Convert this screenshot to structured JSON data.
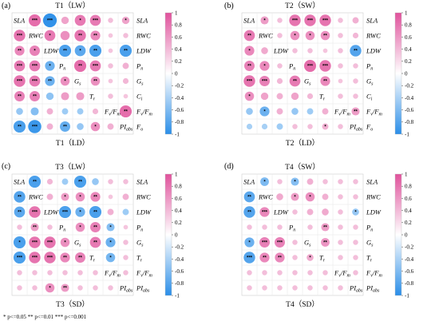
{
  "chart_data": [
    {
      "type": "heatmap",
      "panel_label": "(a)",
      "title": "T1（LW）",
      "xlabel": "T1（LD）",
      "row_labels": [
        "SLA",
        "RWC",
        "LDW",
        "Pn",
        "Gs",
        "Tr",
        "Fv/Fm",
        "PIabs"
      ],
      "col_labels": [
        "SLA",
        "RWC",
        "LDW",
        "Pn",
        "Gs",
        "Tr",
        "Fv/Fm",
        "PIabs"
      ],
      "right_labels": [
        "SLA",
        "RWC",
        "LDW",
        "Pn",
        "Gs",
        "Ci",
        "Fv/Fm",
        "Fo"
      ],
      "color_scale": {
        "min": -1,
        "max": 1,
        "ticks": [
          1,
          0.8,
          0.6,
          0.4,
          0.2,
          0,
          -0.2,
          -0.4,
          -0.6,
          -0.8,
          -1
        ],
        "negative_color": "#2a8ee8",
        "positive_color": "#e0529c"
      },
      "upper": [
        [
          0.8,
          -0.95,
          0.4,
          0.7,
          0.7,
          0.2,
          0.4
        ],
        [
          0.7,
          0.55,
          0.75,
          0.6,
          0.15,
          0.2
        ],
        [
          -0.8,
          -0.7,
          -0.8,
          0.15,
          -0.8
        ],
        [
          0.8,
          0.7,
          0.2,
          0.3
        ],
        [
          0.55,
          0.15,
          0.25
        ],
        [
          0.2,
          0.15
        ],
        [
          0.8
        ]
      ],
      "upper_stars": [
        [
          "***",
          "***",
          "",
          "*",
          "***",
          "",
          "*"
        ],
        [
          "*",
          "",
          "**",
          "**",
          "",
          ""
        ],
        [
          "**",
          "*",
          "**",
          "",
          "**"
        ],
        [
          "**",
          "***",
          "",
          ""
        ],
        [
          "**",
          "",
          ""
        ],
        [
          "",
          ""
        ],
        [
          "**"
        ]
      ],
      "lower": [
        [
          0.75
        ],
        [
          0.6,
          0.65
        ],
        [
          0.7,
          0.7,
          -0.6
        ],
        [
          0.75,
          0.7,
          -0.6,
          0.55
        ],
        [
          0.65,
          0.65,
          -0.4,
          0.45,
          0.45
        ],
        [
          -0.35,
          -0.45,
          0.3,
          -0.3,
          -0.3,
          0.25
        ],
        [
          -0.8,
          -0.9,
          0.3,
          -0.65,
          -0.35,
          0.55,
          0.3
        ]
      ],
      "lower_stars": [
        [
          "***"
        ],
        [
          "**",
          "*"
        ],
        [
          "***",
          "***",
          "*"
        ],
        [
          "***",
          "***",
          "**",
          "*"
        ],
        [
          "**",
          "**",
          "",
          "",
          ""
        ],
        [
          "",
          "",
          "",
          "",
          "",
          ""
        ],
        [
          "**",
          "***",
          "",
          "**",
          "",
          "*",
          ""
        ]
      ]
    },
    {
      "type": "heatmap",
      "panel_label": "(b)",
      "title": "T2（SW）",
      "xlabel": "T2（LD）",
      "row_labels": [
        "SLA",
        "RWC",
        "LDW",
        "Pn",
        "Gs",
        "Tr",
        "Fv/Fm",
        "PIabs"
      ],
      "col_labels": [
        "SLA",
        "RWC",
        "LDW",
        "Pn",
        "Gs",
        "Tr",
        "Fv/Fm",
        "PIabs"
      ],
      "right_labels": [
        "SLA",
        "RWC",
        "LDW",
        "Pn",
        "Gs",
        "Ci",
        "Fv/Fm",
        "Fo"
      ],
      "color_scale": {
        "min": -1,
        "max": 1,
        "ticks": [
          1,
          0.8,
          0.6,
          0.4,
          0.2,
          0,
          -0.2,
          -0.4,
          -0.6,
          -0.8,
          -1
        ],
        "negative_color": "#2a8ee8",
        "positive_color": "#e0529c"
      },
      "upper": [
        [
          0.45,
          0.2,
          0.75,
          0.75,
          0.75,
          0.2,
          0.3
        ],
        [
          0.2,
          0.55,
          0.55,
          0.55,
          0.2,
          0.25
        ],
        [
          0.2,
          0.2,
          0.15,
          0.2,
          -0.75
        ],
        [
          0.8,
          0.75,
          0.2,
          0.2
        ],
        [
          0.6,
          0.15,
          0.2
        ],
        [
          0.2,
          0.2
        ],
        [
          0.45
        ]
      ],
      "upper_stars": [
        [
          "*",
          "",
          "***",
          "***",
          "***",
          "",
          ""
        ],
        [
          "",
          "*",
          "*",
          "**",
          "",
          ""
        ],
        [
          "",
          "",
          "",
          "",
          "**"
        ],
        [
          "***",
          "***",
          "",
          ""
        ],
        [
          "**",
          "",
          ""
        ],
        [
          "",
          ""
        ],
        [
          "**"
        ]
      ],
      "lower": [
        [
          0.7
        ],
        [
          0.6,
          0.35
        ],
        [
          0.65,
          0.6,
          0.2
        ],
        [
          0.75,
          0.65,
          0.25,
          0.7
        ],
        [
          0.55,
          0.4,
          0.3,
          0.4,
          0.25
        ],
        [
          -0.35,
          -0.6,
          0.3,
          -0.35,
          -0.3,
          0.3
        ],
        [
          -0.25,
          -0.25,
          -0.3,
          0.2,
          0.2,
          0.3,
          0.2
        ]
      ],
      "lower_stars": [
        [
          "**"
        ],
        [
          "*",
          ""
        ],
        [
          "**",
          "*",
          ""
        ],
        [
          "***",
          "***",
          "",
          "**"
        ],
        [
          "*",
          "",
          "",
          "",
          ""
        ],
        [
          "",
          "*",
          "",
          "",
          "",
          ""
        ],
        [
          "",
          "",
          "",
          "",
          "",
          "*",
          ""
        ]
      ]
    },
    {
      "type": "heatmap",
      "panel_label": "(c)",
      "title": "T3（LW）",
      "xlabel": "T3（SD）",
      "row_labels": [
        "SLA",
        "RWC",
        "LDW",
        "Pn",
        "Gs",
        "Tr",
        "Fv/Fm",
        "PIabs"
      ],
      "col_labels": [
        "SLA",
        "RWC",
        "LDW",
        "Pn",
        "Gs",
        "Tr",
        "Fv/Fm",
        "PIabs"
      ],
      "right_labels": [
        "SLA",
        "RWC",
        "LDW",
        "Pn",
        "Gs",
        "Tr",
        "Fv/Fm",
        "PIabs"
      ],
      "color_scale": {
        "min": -1,
        "max": 1,
        "ticks": [
          1,
          0.8,
          0.6,
          0.4,
          0.2,
          0,
          -0.2,
          -0.4,
          -0.6,
          -0.8,
          -1
        ],
        "negative_color": "#2a8ee8",
        "positive_color": "#e0529c"
      },
      "upper": [
        [
          -0.8,
          0.25,
          -0.3,
          -0.8,
          -0.35,
          0.2,
          0.2
        ],
        [
          0.3,
          0.45,
          0.55,
          0.6,
          0.15,
          0.3
        ],
        [
          -0.8,
          -0.6,
          -0.8,
          0.3,
          -0.3
        ],
        [
          0.55,
          0.65,
          -0.45,
          0.15
        ],
        [
          0.7,
          -0.6,
          0.2
        ],
        [
          -0.55,
          0.2
        ],
        [
          0.2
        ]
      ],
      "upper_stars": [
        [
          "**",
          "",
          "",
          "**",
          "",
          "",
          ""
        ],
        [
          "",
          "*",
          "*",
          "**",
          "",
          ""
        ],
        [
          "***",
          "*",
          "**",
          "",
          ""
        ],
        [
          "*",
          "**",
          "*",
          ""
        ],
        [
          "**",
          "*",
          ""
        ],
        [
          "*",
          ""
        ],
        [
          ""
        ]
      ],
      "lower": [
        [
          -0.75
        ],
        [
          -0.7,
          0.75
        ],
        [
          0.2,
          0.45,
          0.2
        ],
        [
          -0.8,
          0.75,
          0.75,
          0.55
        ],
        [
          -0.8,
          0.75,
          0.75,
          0.6,
          0.65
        ],
        [
          0.2,
          0.2,
          0.2,
          0.2,
          0.2,
          0.2
        ],
        [
          0.2,
          0.2,
          0.55,
          0.45,
          0.2,
          0.2,
          0.2
        ]
      ],
      "lower_stars": [
        [
          "**"
        ],
        [
          "**",
          "***"
        ],
        [
          "",
          "**",
          ""
        ],
        [
          "*",
          "***",
          "***",
          "*"
        ],
        [
          "***",
          "***",
          "***",
          "**",
          "**"
        ],
        [
          "",
          "",
          "",
          "",
          "",
          ""
        ],
        [
          "",
          "",
          "*",
          "**",
          "",
          "",
          ""
        ]
      ]
    },
    {
      "type": "heatmap",
      "panel_label": "(d)",
      "title": "T4（SW）",
      "xlabel": "T4（SD）",
      "row_labels": [
        "SLA",
        "RWC",
        "LDW",
        "Pn",
        "Gs",
        "Tr",
        "Fv/Fm",
        "PIabs"
      ],
      "col_labels": [
        "SLA",
        "RWC",
        "LDW",
        "Pn",
        "Gs",
        "Tr",
        "Fv/Fm",
        "PIabs"
      ],
      "right_labels": [
        "SLA",
        "RWC",
        "LDW",
        "Pn",
        "Gs",
        "Tr",
        "Fv/Fm",
        "PIabs"
      ],
      "color_scale": {
        "min": -1,
        "max": 1,
        "ticks": [
          1,
          0.8,
          0.6,
          0.4,
          0.2,
          0,
          -0.2,
          -0.4,
          -0.6,
          -0.8,
          -1
        ],
        "negative_color": "#2a8ee8",
        "positive_color": "#e0529c"
      },
      "upper": [
        [
          -0.5,
          0.2,
          -0.45,
          0.3,
          0.2,
          0.2,
          0.2
        ],
        [
          0.35,
          0.45,
          0.55,
          0.3,
          0.2,
          0.2
        ],
        [
          0.2,
          0.3,
          0.35,
          0.2,
          -0.35
        ],
        [
          0.2,
          0.45,
          0.2,
          0.2
        ],
        [
          0.5,
          0.2,
          0.2
        ],
        [
          0.2,
          0.2
        ],
        [
          0.2
        ]
      ],
      "upper_stars": [
        [
          "*",
          "",
          "*",
          "",
          "",
          "",
          ""
        ],
        [
          "",
          "*",
          "*",
          "",
          "",
          ""
        ],
        [
          "",
          "",
          "",
          "",
          "*"
        ],
        [
          "",
          "**",
          "",
          ""
        ],
        [
          "**",
          "",
          ""
        ],
        [
          "",
          ""
        ],
        [
          ""
        ]
      ],
      "lower": [
        [
          -0.7
        ],
        [
          -0.75,
          0.6
        ],
        [
          0.2,
          0.2,
          0.2
        ],
        [
          -0.6,
          0.65,
          0.65,
          0.2
        ],
        [
          -0.75,
          0.6,
          0.6,
          0.2,
          0.35
        ],
        [
          0.2,
          0.2,
          0.2,
          0.2,
          0.2,
          0.2
        ],
        [
          0.2,
          0.2,
          0.2,
          0.2,
          0.2,
          0.2,
          0.2
        ]
      ],
      "lower_stars": [
        [
          "**"
        ],
        [
          "**",
          "***"
        ],
        [
          "",
          "",
          ""
        ],
        [
          "*",
          "***",
          "***",
          ""
        ],
        [
          "***",
          "**",
          "**",
          "",
          "*"
        ],
        [
          "",
          "",
          "",
          "",
          "",
          ""
        ],
        [
          "",
          "",
          "",
          "",
          "",
          "",
          ""
        ]
      ]
    }
  ],
  "significance_note": "* p<=0.05  ** p<=0.01  *** p<=0.001"
}
